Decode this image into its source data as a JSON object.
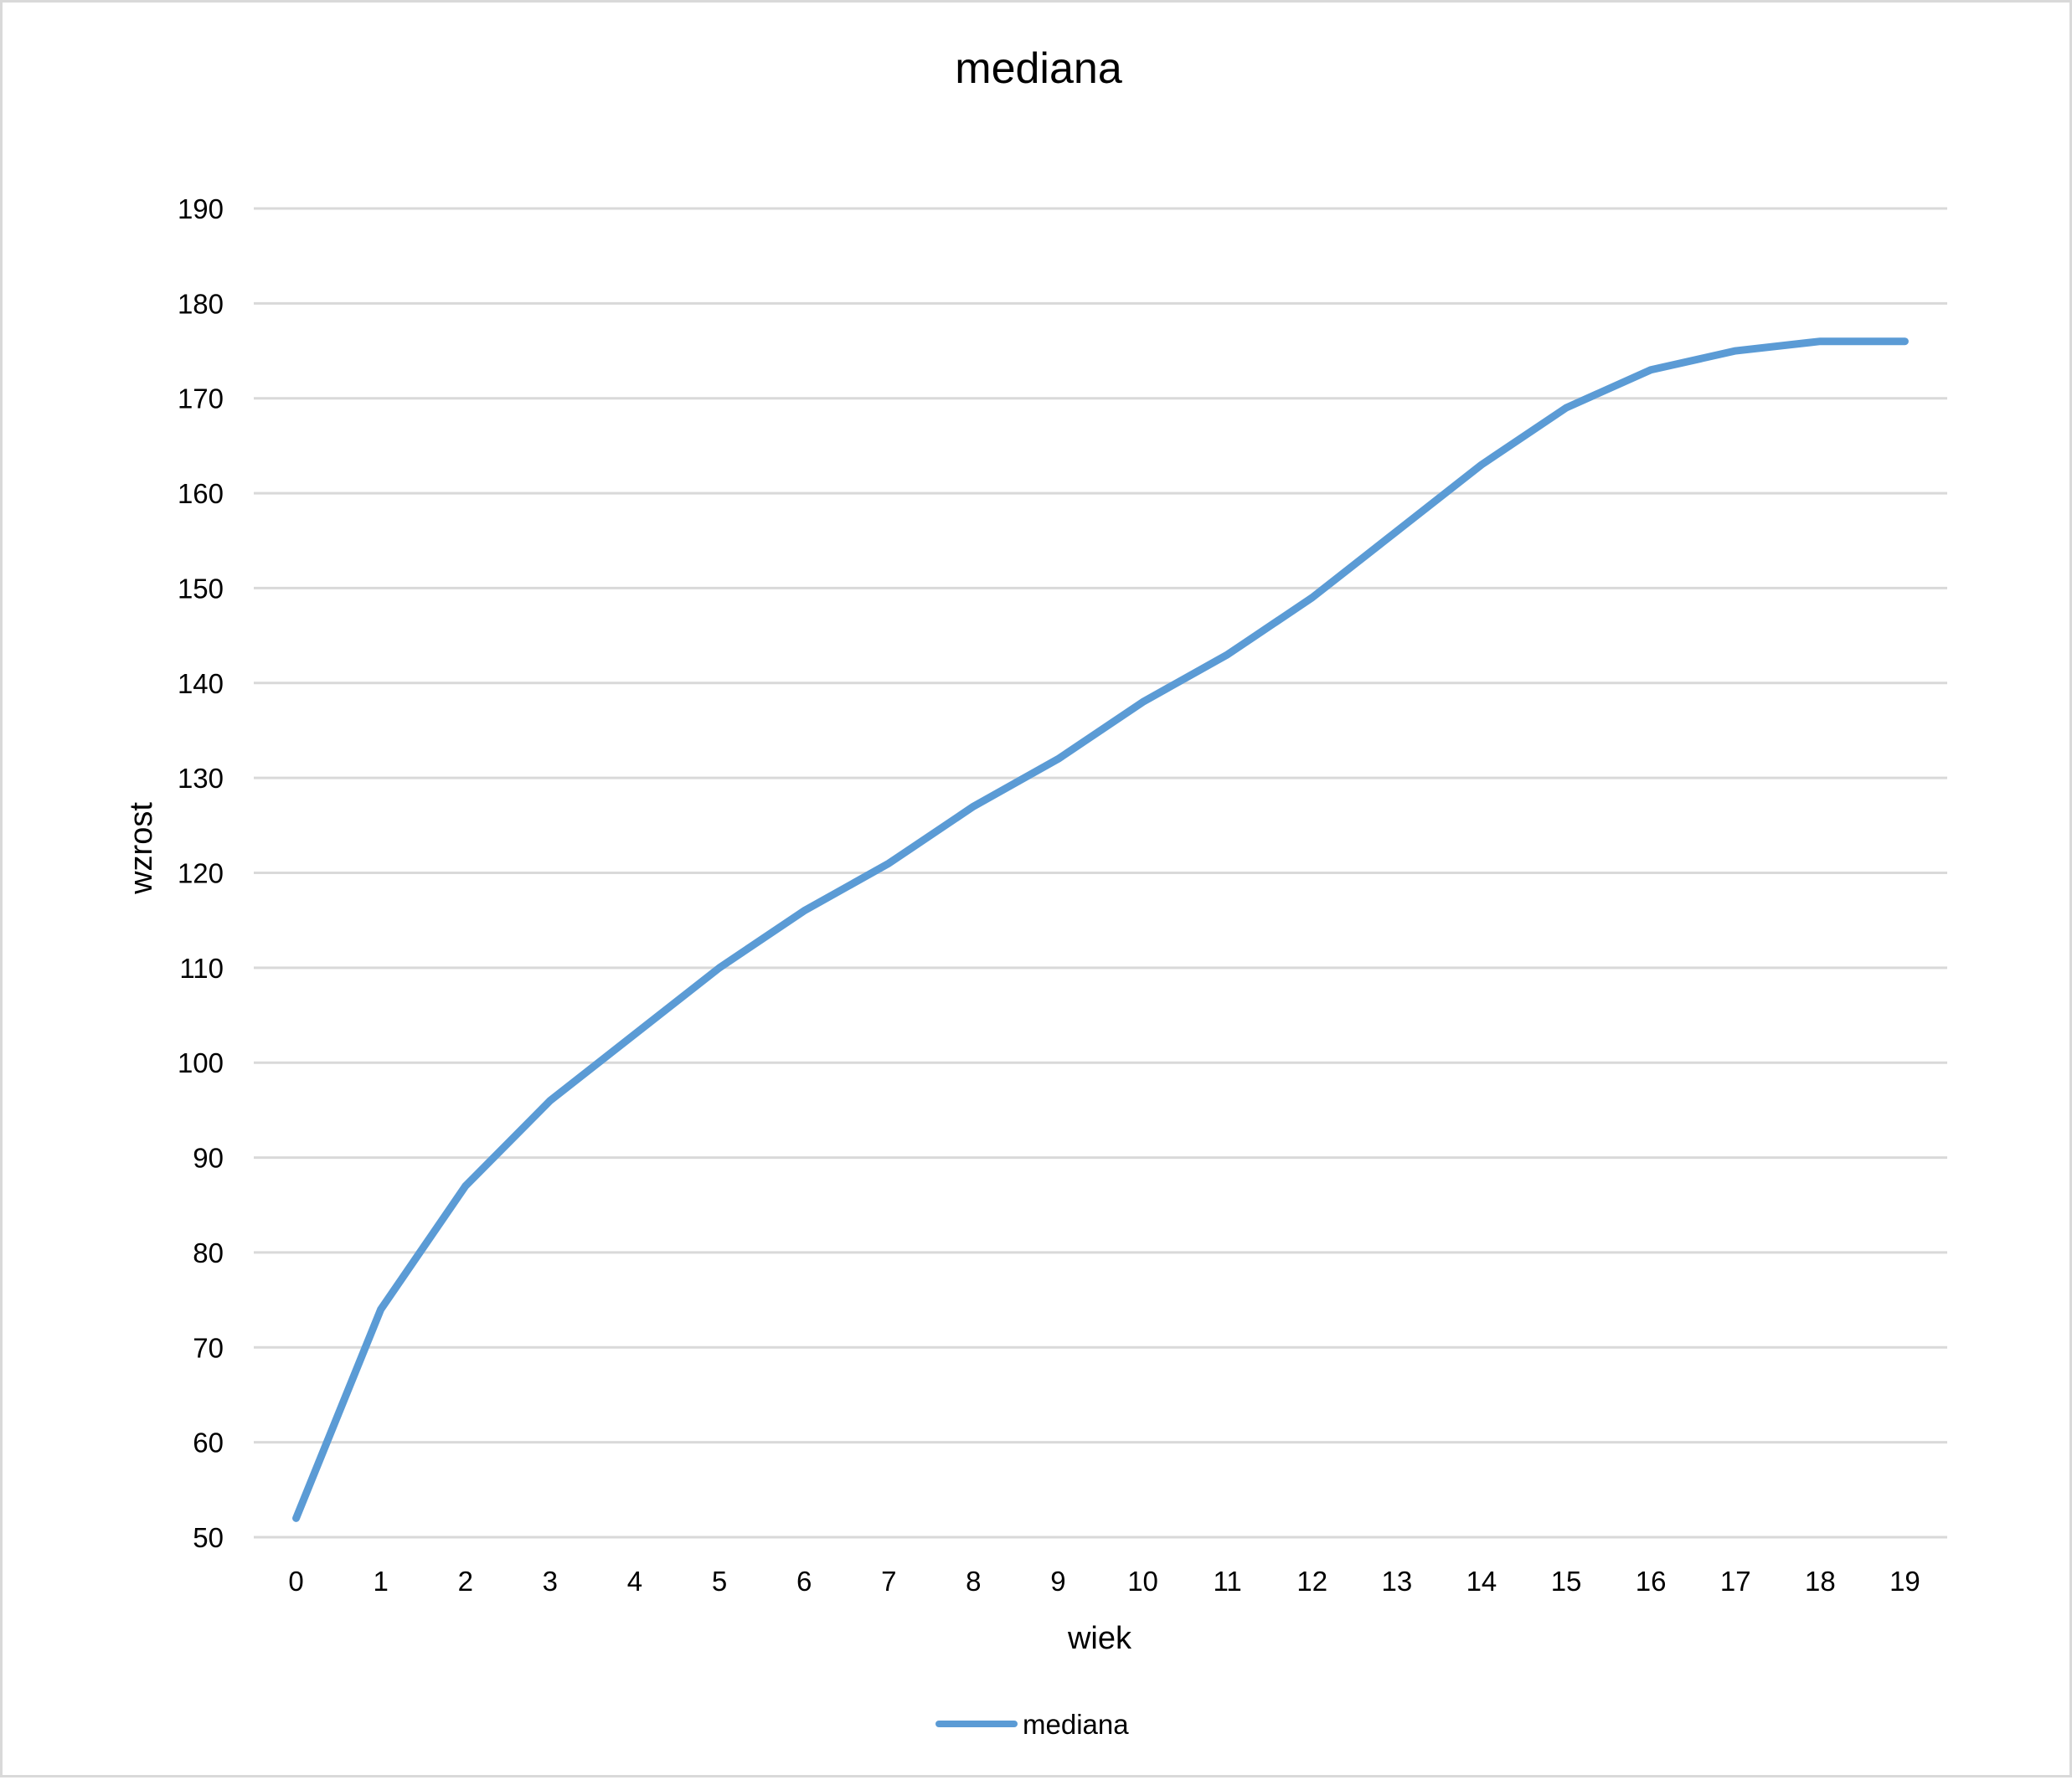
{
  "chart_data": {
    "type": "line",
    "title": "mediana",
    "xlabel": "wiek",
    "ylabel": "wzrost",
    "categories": [
      "0",
      "1",
      "2",
      "3",
      "4",
      "5",
      "6",
      "7",
      "8",
      "9",
      "10",
      "11",
      "12",
      "13",
      "14",
      "15",
      "16",
      "17",
      "18",
      "19"
    ],
    "series": [
      {
        "name": "mediana",
        "color": "#5b9bd5",
        "values": [
          52,
          74,
          87,
          96,
          103,
          110,
          116,
          121,
          127,
          132,
          138,
          143,
          149,
          156,
          163,
          169,
          173,
          175,
          176,
          176
        ]
      }
    ],
    "ylim": [
      50,
      190
    ],
    "yticks": [
      50,
      60,
      70,
      80,
      90,
      100,
      110,
      120,
      130,
      140,
      150,
      160,
      170,
      180,
      190
    ],
    "grid": true,
    "legend_position": "bottom"
  }
}
